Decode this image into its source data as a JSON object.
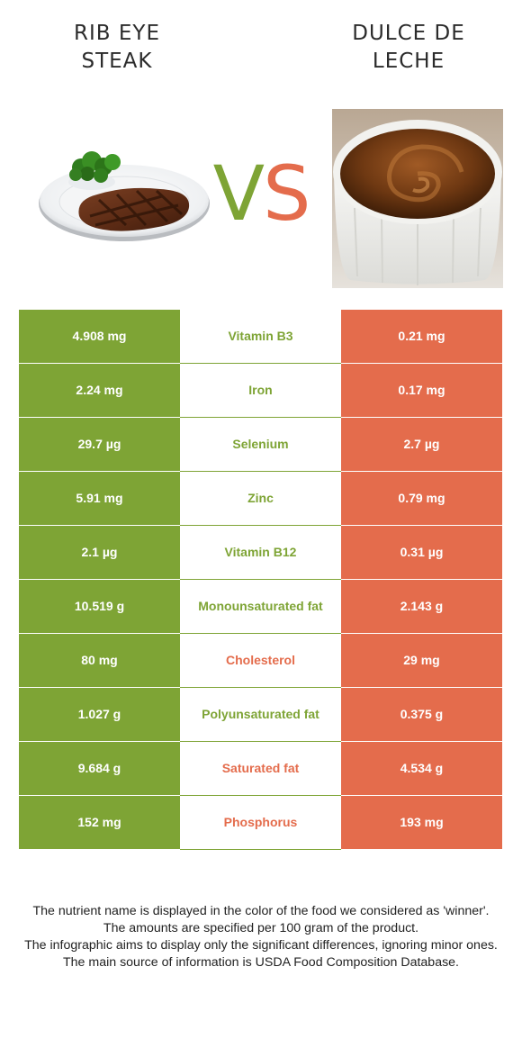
{
  "header": {
    "left_title_lines": [
      "RIB EYE",
      "STEAK"
    ],
    "right_title_lines": [
      "DULCE DE",
      "LECHE"
    ],
    "vs_v": "V",
    "vs_s": "S"
  },
  "colors": {
    "left_food": "#7ea435",
    "right_food": "#e46c4c"
  },
  "images": {
    "left": "steak-plate-with-broccoli",
    "right": "dulce-de-leche-ramekin"
  },
  "rows": [
    {
      "left": "4.908 mg",
      "nutrient": "Vitamin B3",
      "right": "0.21 mg",
      "winner": "left"
    },
    {
      "left": "2.24 mg",
      "nutrient": "Iron",
      "right": "0.17 mg",
      "winner": "left"
    },
    {
      "left": "29.7 µg",
      "nutrient": "Selenium",
      "right": "2.7 µg",
      "winner": "left"
    },
    {
      "left": "5.91 mg",
      "nutrient": "Zinc",
      "right": "0.79 mg",
      "winner": "left"
    },
    {
      "left": "2.1 µg",
      "nutrient": "Vitamin B12",
      "right": "0.31 µg",
      "winner": "left"
    },
    {
      "left": "10.519 g",
      "nutrient": "Monounsaturated fat",
      "right": "2.143 g",
      "winner": "left"
    },
    {
      "left": "80 mg",
      "nutrient": "Cholesterol",
      "right": "29 mg",
      "winner": "right"
    },
    {
      "left": "1.027 g",
      "nutrient": "Polyunsaturated fat",
      "right": "0.375 g",
      "winner": "left"
    },
    {
      "left": "9.684 g",
      "nutrient": "Saturated fat",
      "right": "4.534 g",
      "winner": "right"
    },
    {
      "left": "152 mg",
      "nutrient": "Phosphorus",
      "right": "193 mg",
      "winner": "right"
    }
  ],
  "footer": {
    "line1": "The nutrient name is displayed in the color of the food we considered as 'winner'.",
    "line2": "The amounts are specified per 100 gram of the product.",
    "line3": "The infographic aims to display only the significant differences, ignoring minor ones.",
    "line4": "The main source of information is USDA Food Composition Database."
  }
}
